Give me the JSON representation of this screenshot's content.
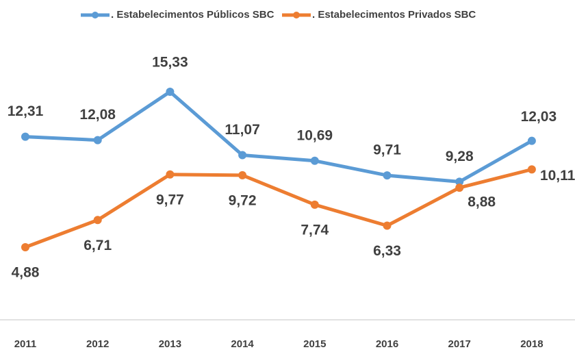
{
  "chart_data": {
    "type": "line",
    "categories": [
      "2011",
      "2012",
      "2013",
      "2014",
      "2015",
      "2016",
      "2017",
      "2018"
    ],
    "series": [
      {
        "name": ". Estabelecimentos Públicos SBC",
        "color": "#5b9bd5",
        "values": [
          12.31,
          12.08,
          15.33,
          11.07,
          10.69,
          9.71,
          9.28,
          12.03
        ],
        "value_labels": [
          "12,31",
          "12,08",
          "15,33",
          "11,07",
          "10,69",
          "9,71",
          "9,28",
          "12,03"
        ]
      },
      {
        "name": ". Estabelecimentos Privados SBC",
        "color": "#ed7d31",
        "values": [
          4.88,
          6.71,
          9.77,
          9.72,
          7.74,
          6.33,
          8.88,
          10.11
        ],
        "value_labels": [
          "4,88",
          "6,71",
          "9,77",
          "9,72",
          "7,74",
          "6,33",
          "8,88",
          "10,11"
        ]
      }
    ],
    "ylim": [
      0,
      18
    ]
  }
}
